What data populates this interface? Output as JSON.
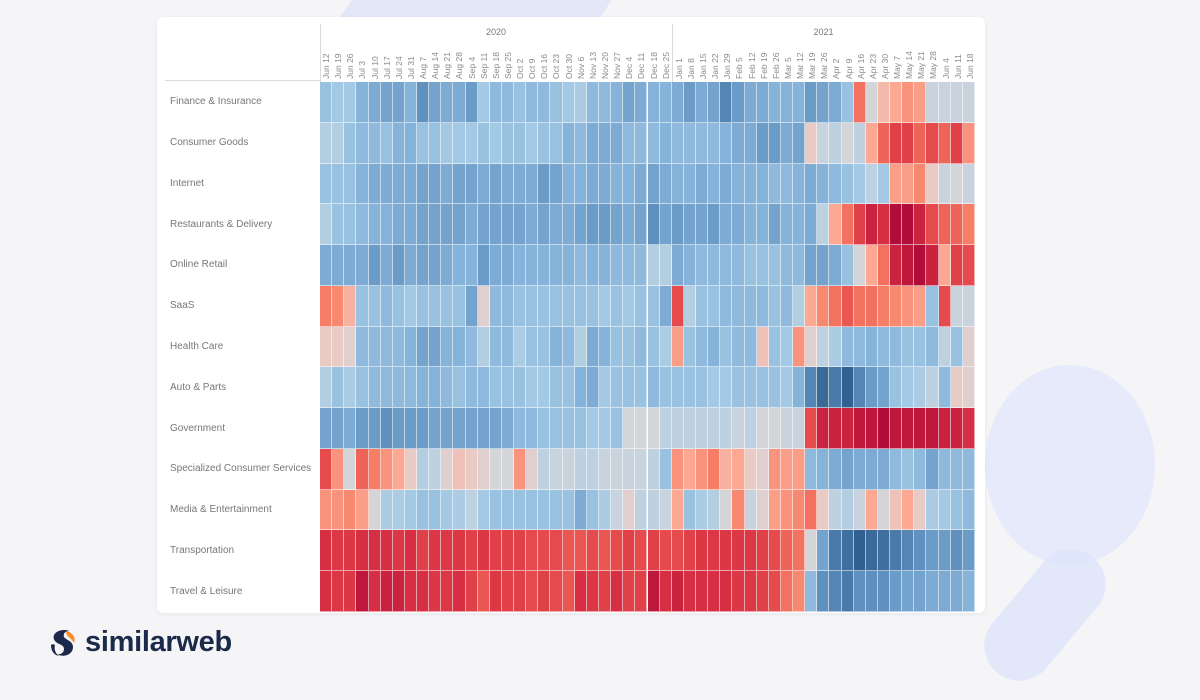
{
  "brand": {
    "name": "similarweb",
    "colors": {
      "navy": "#1b2a4a",
      "orange": "#ff8a1f"
    }
  },
  "chart_data": {
    "type": "heatmap",
    "title": "",
    "year_labels": [
      "2020",
      "2021"
    ],
    "columns_2020": [
      "Jun 12",
      "Jun 19",
      "Jun 26",
      "Jul 3",
      "Jul 10",
      "Jul 17",
      "Jul 24",
      "Jul 31",
      "Aug 7",
      "Aug 14",
      "Aug 21",
      "Aug 28",
      "Sep 4",
      "Sep 11",
      "Sep 18",
      "Sep 25",
      "Oct 2",
      "Oct 9",
      "Oct 16",
      "Oct 23",
      "Oct 30",
      "Nov 6",
      "Nov 13",
      "Nov 20",
      "Nov 27",
      "Dec 4",
      "Dec 11",
      "Dec 18",
      "Dec 25"
    ],
    "columns_2021": [
      "Jan 1",
      "Jan 8",
      "Jan 15",
      "Jan 22",
      "Jan 29",
      "Feb 5",
      "Feb 12",
      "Feb 19",
      "Feb 26",
      "Mar 5",
      "Mar 12",
      "Mar 19",
      "Mar 26",
      "Apr 2",
      "Apr 9",
      "Apr 16",
      "Apr 23",
      "Apr 30",
      "May 7",
      "May 14",
      "May 21",
      "May 28",
      "Jun 4",
      "Jun 11",
      "Jun 18"
    ],
    "color_scale": {
      "type": "diverging",
      "range": [
        -1,
        1
      ],
      "low": "#2a5686",
      "mid": "#d4d5d9",
      "high": "#b00d38"
    },
    "rows": [
      {
        "label": "Finance & Insurance",
        "values": [
          -0.3,
          -0.25,
          -0.25,
          -0.4,
          -0.45,
          -0.5,
          -0.5,
          -0.4,
          -0.6,
          -0.5,
          -0.45,
          -0.45,
          -0.55,
          -0.25,
          -0.35,
          -0.35,
          -0.3,
          -0.35,
          -0.35,
          -0.3,
          -0.25,
          -0.2,
          -0.35,
          -0.35,
          -0.4,
          -0.5,
          -0.45,
          -0.4,
          -0.4,
          -0.45,
          -0.55,
          -0.45,
          -0.5,
          -0.65,
          -0.55,
          -0.45,
          -0.45,
          -0.4,
          -0.4,
          -0.4,
          -0.55,
          -0.5,
          -0.45,
          -0.3,
          0.55,
          0,
          0.2,
          0.3,
          0.4,
          0.35,
          -0.05,
          -0.05,
          -0.05,
          -0.05
        ]
      },
      {
        "label": "Consumer Goods",
        "values": [
          -0.15,
          -0.15,
          -0.3,
          -0.35,
          -0.35,
          -0.3,
          -0.4,
          -0.4,
          -0.3,
          -0.3,
          -0.25,
          -0.25,
          -0.25,
          -0.3,
          -0.25,
          -0.3,
          -0.3,
          -0.25,
          -0.3,
          -0.3,
          -0.4,
          -0.35,
          -0.45,
          -0.45,
          -0.45,
          -0.35,
          -0.35,
          -0.35,
          -0.4,
          -0.35,
          -0.35,
          -0.35,
          -0.35,
          -0.4,
          -0.45,
          -0.45,
          -0.55,
          -0.55,
          -0.45,
          -0.5,
          0.1,
          -0.05,
          -0.1,
          0,
          -0.1,
          0.3,
          0.6,
          0.75,
          0.75,
          0.6,
          0.7,
          0.6,
          0.75,
          0.4
        ]
      },
      {
        "label": "Internet",
        "values": [
          -0.3,
          -0.3,
          -0.3,
          -0.4,
          -0.45,
          -0.45,
          -0.45,
          -0.45,
          -0.5,
          -0.5,
          -0.45,
          -0.5,
          -0.5,
          -0.45,
          -0.5,
          -0.45,
          -0.45,
          -0.45,
          -0.55,
          -0.5,
          -0.4,
          -0.4,
          -0.45,
          -0.45,
          -0.4,
          -0.4,
          -0.45,
          -0.5,
          -0.45,
          -0.4,
          -0.4,
          -0.45,
          -0.4,
          -0.45,
          -0.4,
          -0.4,
          -0.4,
          -0.35,
          -0.35,
          -0.4,
          -0.45,
          -0.4,
          -0.35,
          -0.3,
          -0.25,
          -0.1,
          -0.25,
          0.35,
          0.35,
          0.45,
          0.1,
          -0.05,
          0,
          -0.05
        ]
      },
      {
        "label": "Restaurants & Delivery",
        "values": [
          -0.15,
          -0.3,
          -0.3,
          -0.35,
          -0.4,
          -0.4,
          -0.45,
          -0.45,
          -0.5,
          -0.5,
          -0.5,
          -0.5,
          -0.45,
          -0.5,
          -0.5,
          -0.5,
          -0.5,
          -0.45,
          -0.5,
          -0.45,
          -0.45,
          -0.5,
          -0.55,
          -0.55,
          -0.5,
          -0.45,
          -0.5,
          -0.6,
          -0.5,
          -0.55,
          -0.5,
          -0.5,
          -0.55,
          -0.45,
          -0.45,
          -0.4,
          -0.4,
          -0.5,
          -0.4,
          -0.4,
          -0.45,
          -0.1,
          0.3,
          0.55,
          0.75,
          0.9,
          0.85,
          1.0,
          1.0,
          0.9,
          0.7,
          0.6,
          0.6,
          0.5
        ]
      },
      {
        "label": "Online Retail",
        "values": [
          -0.45,
          -0.45,
          -0.45,
          -0.45,
          -0.55,
          -0.45,
          -0.55,
          -0.45,
          -0.5,
          -0.5,
          -0.45,
          -0.4,
          -0.4,
          -0.55,
          -0.45,
          -0.45,
          -0.4,
          -0.4,
          -0.4,
          -0.4,
          -0.4,
          -0.35,
          -0.4,
          -0.4,
          -0.35,
          -0.35,
          -0.35,
          -0.15,
          -0.15,
          -0.45,
          -0.4,
          -0.35,
          -0.35,
          -0.35,
          -0.35,
          -0.3,
          -0.3,
          -0.3,
          -0.35,
          -0.35,
          -0.5,
          -0.5,
          -0.45,
          -0.3,
          0,
          0.3,
          0.55,
          0.9,
          0.95,
          1.0,
          0.9,
          0.3,
          0.75,
          0.7
        ]
      },
      {
        "label": "SaaS",
        "values": [
          0.5,
          0.45,
          0.25,
          -0.3,
          -0.3,
          -0.35,
          -0.3,
          -0.25,
          -0.3,
          -0.3,
          -0.3,
          -0.3,
          -0.5,
          0.05,
          -0.35,
          -0.35,
          -0.3,
          -0.3,
          -0.3,
          -0.3,
          -0.3,
          -0.3,
          -0.3,
          -0.25,
          -0.3,
          -0.25,
          -0.3,
          -0.3,
          -0.45,
          0.7,
          -0.15,
          -0.3,
          -0.3,
          -0.35,
          -0.35,
          -0.35,
          -0.35,
          -0.3,
          -0.35,
          -0.15,
          0.3,
          0.45,
          0.55,
          0.65,
          0.55,
          0.55,
          0.5,
          0.45,
          0.4,
          0.35,
          -0.3,
          0.7,
          -0.05,
          -0.05
        ]
      },
      {
        "label": "Health Care",
        "values": [
          0.1,
          0.1,
          0.05,
          -0.35,
          -0.35,
          -0.35,
          -0.35,
          -0.4,
          -0.5,
          -0.5,
          -0.4,
          -0.4,
          -0.35,
          -0.15,
          -0.35,
          -0.35,
          -0.2,
          -0.3,
          -0.3,
          -0.4,
          -0.35,
          -0.15,
          -0.45,
          -0.4,
          -0.3,
          -0.3,
          -0.35,
          -0.3,
          -0.2,
          0.35,
          -0.3,
          -0.35,
          -0.4,
          -0.3,
          -0.35,
          -0.35,
          0.15,
          -0.3,
          -0.25,
          0.4,
          0.05,
          -0.1,
          -0.2,
          -0.35,
          -0.35,
          -0.4,
          -0.35,
          -0.35,
          -0.3,
          -0.3,
          -0.35,
          -0.1,
          -0.3,
          0.05
        ]
      },
      {
        "label": "Auto & Parts",
        "values": [
          -0.15,
          -0.3,
          -0.2,
          -0.3,
          -0.35,
          -0.35,
          -0.35,
          -0.35,
          -0.4,
          -0.4,
          -0.35,
          -0.3,
          -0.35,
          -0.35,
          -0.3,
          -0.3,
          -0.3,
          -0.25,
          -0.25,
          -0.3,
          -0.3,
          -0.4,
          -0.45,
          -0.25,
          -0.3,
          -0.3,
          -0.3,
          -0.35,
          -0.3,
          -0.3,
          -0.3,
          -0.3,
          -0.25,
          -0.25,
          -0.3,
          -0.3,
          -0.3,
          -0.3,
          -0.25,
          -0.4,
          -0.65,
          -0.8,
          -0.7,
          -0.9,
          -0.65,
          -0.55,
          -0.5,
          -0.3,
          -0.25,
          -0.2,
          -0.1,
          -0.35,
          0.1,
          0.05
        ]
      },
      {
        "label": "Government",
        "values": [
          -0.5,
          -0.5,
          -0.45,
          -0.55,
          -0.55,
          -0.6,
          -0.55,
          -0.55,
          -0.55,
          -0.5,
          -0.5,
          -0.5,
          -0.5,
          -0.5,
          -0.5,
          -0.45,
          -0.35,
          -0.35,
          -0.3,
          -0.3,
          -0.3,
          -0.3,
          -0.25,
          -0.25,
          -0.3,
          0,
          0,
          0,
          -0.1,
          -0.1,
          -0.1,
          -0.1,
          -0.1,
          -0.1,
          -0.05,
          -0.1,
          0,
          0,
          -0.05,
          -0.05,
          0.7,
          0.9,
          0.9,
          0.9,
          0.95,
          0.95,
          1.0,
          0.95,
          0.95,
          0.95,
          0.95,
          0.9,
          0.9,
          0.85
        ]
      },
      {
        "label": "Specialized Consumer Services",
        "values": [
          0.7,
          0.4,
          0,
          0.6,
          0.5,
          0.4,
          0.3,
          0.1,
          -0.15,
          -0.1,
          0.05,
          0.15,
          0.1,
          0.05,
          0,
          0,
          0.4,
          0.05,
          -0.1,
          -0.05,
          -0.05,
          -0.1,
          -0.1,
          -0.05,
          -0.05,
          -0.05,
          -0.05,
          -0.1,
          -0.3,
          0.4,
          0.3,
          0.4,
          0.5,
          0.25,
          0.3,
          0.1,
          0.05,
          0.4,
          0.35,
          0.35,
          -0.35,
          -0.4,
          -0.45,
          -0.5,
          -0.45,
          -0.45,
          -0.45,
          -0.35,
          -0.3,
          -0.35,
          -0.5,
          -0.35,
          -0.35,
          -0.35
        ]
      },
      {
        "label": "Media & Entertainment",
        "values": [
          0.4,
          0.4,
          0.45,
          0.35,
          0,
          -0.2,
          -0.2,
          -0.25,
          -0.3,
          -0.3,
          -0.25,
          -0.2,
          -0.1,
          -0.25,
          -0.3,
          -0.3,
          -0.3,
          -0.3,
          -0.3,
          -0.3,
          -0.3,
          -0.45,
          -0.3,
          -0.2,
          -0.05,
          0.05,
          -0.1,
          -0.1,
          -0.05,
          0.3,
          -0.3,
          -0.2,
          -0.15,
          0,
          0.45,
          -0.05,
          0.05,
          0.35,
          0.4,
          0.45,
          0.55,
          0.1,
          -0.1,
          -0.15,
          -0.05,
          0.3,
          0,
          0.15,
          0.3,
          0.1,
          -0.2,
          -0.25,
          -0.3,
          -0.35
        ]
      },
      {
        "label": "Transportation",
        "values": [
          0.85,
          0.8,
          0.8,
          0.85,
          0.85,
          0.85,
          0.8,
          0.85,
          0.75,
          0.8,
          0.8,
          0.8,
          0.75,
          0.8,
          0.75,
          0.75,
          0.75,
          0.7,
          0.7,
          0.7,
          0.65,
          0.65,
          0.7,
          0.65,
          0.7,
          0.75,
          0.7,
          0.75,
          0.7,
          0.7,
          0.75,
          0.8,
          0.8,
          0.8,
          0.8,
          0.8,
          0.75,
          0.7,
          0.6,
          0.55,
          0,
          -0.5,
          -0.7,
          -0.75,
          -0.9,
          -0.8,
          -0.75,
          -0.7,
          -0.65,
          -0.6,
          -0.55,
          -0.55,
          -0.6,
          -0.55
        ]
      },
      {
        "label": "Travel & Leisure",
        "values": [
          0.85,
          0.8,
          0.8,
          0.95,
          0.85,
          0.9,
          0.9,
          0.85,
          0.85,
          0.8,
          0.8,
          0.85,
          0.75,
          0.65,
          0.8,
          0.75,
          0.75,
          0.7,
          0.75,
          0.7,
          0.65,
          0.85,
          0.8,
          0.75,
          0.85,
          0.75,
          0.75,
          0.95,
          0.85,
          0.9,
          0.85,
          0.85,
          0.85,
          0.85,
          0.8,
          0.8,
          0.75,
          0.7,
          0.55,
          0.45,
          -0.35,
          -0.6,
          -0.65,
          -0.7,
          -0.6,
          -0.6,
          -0.6,
          -0.55,
          -0.5,
          -0.5,
          -0.45,
          -0.45,
          -0.45,
          -0.4
        ]
      }
    ]
  }
}
